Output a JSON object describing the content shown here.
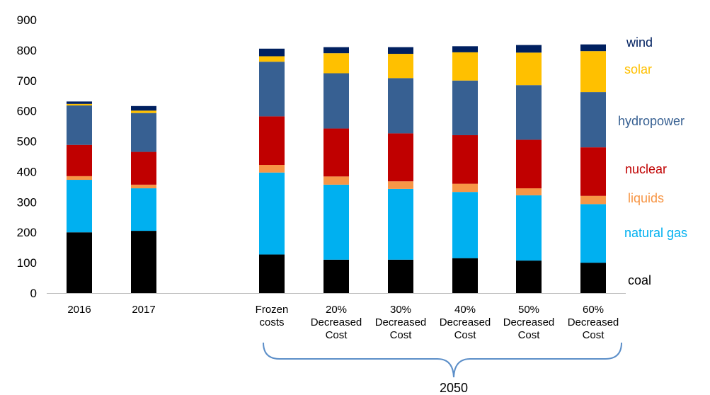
{
  "chart_data": {
    "type": "bar",
    "stacked": true,
    "title": "",
    "xlabel": "",
    "ylabel": "",
    "ylim": [
      0,
      900
    ],
    "yticks": [
      0,
      100,
      200,
      300,
      400,
      500,
      600,
      700,
      800,
      900
    ],
    "grid": false,
    "legend_position": "right, inline labels",
    "group_label": "2050",
    "categories": [
      [
        "2016"
      ],
      [
        "2017"
      ],
      [
        "Frozen",
        "costs"
      ],
      [
        "20%",
        "Decreased",
        "Cost"
      ],
      [
        "30%",
        "Decreased",
        "Cost"
      ],
      [
        "40%",
        "Decreased",
        "Cost"
      ],
      [
        "50%",
        "Decreased",
        "Cost"
      ],
      [
        "60%",
        "Decreased",
        "Cost"
      ]
    ],
    "series": [
      {
        "name": "coal",
        "color": "#000000",
        "values": [
          200,
          205,
          127,
          110,
          110,
          115,
          107,
          100
        ]
      },
      {
        "name": "natural gas",
        "color": "#00b0f0",
        "values": [
          173,
          140,
          270,
          247,
          233,
          218,
          215,
          193
        ]
      },
      {
        "name": "liquids",
        "color": "#f79646",
        "values": [
          12,
          12,
          25,
          27,
          25,
          27,
          23,
          27
        ]
      },
      {
        "name": "nuclear",
        "color": "#c00000",
        "values": [
          103,
          108,
          160,
          158,
          158,
          160,
          160,
          160
        ]
      },
      {
        "name": "hydropower",
        "color": "#376092",
        "values": [
          130,
          128,
          180,
          182,
          182,
          180,
          180,
          182
        ]
      },
      {
        "name": "solar",
        "color": "#ffc000",
        "values": [
          5,
          8,
          18,
          66,
          80,
          93,
          107,
          135
        ]
      },
      {
        "name": "wind",
        "color": "#002060",
        "values": [
          8,
          15,
          25,
          20,
          22,
          20,
          25,
          22
        ]
      }
    ],
    "legend_colors": {
      "wind": "#002060",
      "solar": "#ffc000",
      "hydropower": "#376092",
      "nuclear": "#c00000",
      "liquids": "#f79646",
      "natural gas": "#00b0f0",
      "coal": "#000000"
    },
    "bracket_color": "#5b8ec8"
  }
}
